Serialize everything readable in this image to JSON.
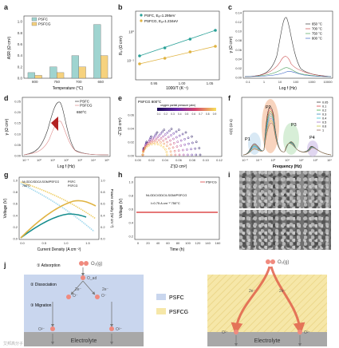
{
  "panels": {
    "a": {
      "label": "a",
      "legend": [
        "PSFC",
        "PSFCG"
      ],
      "xlabel": "Temperature (°C)",
      "ylabel": "ASR (Ω cm²)"
    },
    "b": {
      "label": "b",
      "legend": [
        "PSFC, Eₐ=1.295eV",
        "PSFCG, Eₐ=1.234eV"
      ],
      "xlabel": "1000/T (K⁻¹)",
      "ylabel": "Rₚ (Ω cm²)"
    },
    "c": {
      "label": "c",
      "legend": [
        "650 °C",
        "700 °C",
        "750 °C",
        "800 °C"
      ],
      "xlabel": "Log f (Hz)",
      "ylabel": "γ (Ω cm²)"
    },
    "d": {
      "label": "d",
      "legend": [
        "PSFC",
        "PSFCG"
      ],
      "annotation": "650°C",
      "xlabel": "Log f (Hz)",
      "ylabel": "γ (Ω cm²)"
    },
    "e": {
      "label": "e",
      "title": "PSFCG 800°C",
      "cbar_label": "oxygen partial pressure (atm)",
      "cbar_ticks": [
        "0.1",
        "0.2",
        "0.3",
        "0.4",
        "0.5",
        "0.6",
        "0.7",
        "0.8",
        "0.9"
      ],
      "xlabel": "Z'(Ω cm²)",
      "ylabel": "-Z''(Ω cm²)"
    },
    "f": {
      "label": "f",
      "legend": [
        "0.05",
        "0.1",
        "0.2",
        "0.3",
        "0.4",
        "0.5",
        "0.6",
        "1"
      ],
      "peaks": [
        "P1",
        "P2",
        "P3",
        "P4"
      ],
      "xlabel": "Frequency (Hz)",
      "ylabel": "G(τ) (Ω s)"
    },
    "g": {
      "label": "g",
      "cell": "Ni-GDC/GDC/LSGM/PSFCG",
      "temp": "750°C",
      "legend": [
        "PSFC",
        "PSFCG"
      ],
      "xlabel": "Current Density (A cm⁻²)",
      "ylabel": "Voltage (V)",
      "y2label": "Power Density (W cm⁻²)"
    },
    "h": {
      "label": "h",
      "legend": [
        "PSFCG"
      ],
      "cell": "Ni-GDC/GDC/LSGM/PSFCG",
      "condition": "I=0.75 A cm⁻²   750°C",
      "xlabel": "Time (h)",
      "ylabel": "Voltage (V)"
    },
    "i": {
      "label": "i"
    },
    "j": {
      "label": "j"
    }
  },
  "chart_data": [
    {
      "type": "bar",
      "title": "",
      "categories": [
        "800",
        "750",
        "700",
        "650"
      ],
      "series": [
        {
          "name": "PSFC",
          "values": [
            0.1,
            0.2,
            0.4,
            0.95
          ]
        },
        {
          "name": "PSFCG",
          "values": [
            0.05,
            0.1,
            0.2,
            0.4
          ]
        }
      ],
      "ylim": [
        0,
        1.1
      ],
      "yticks": [
        "0.0",
        "0.2",
        "0.4",
        "0.6",
        "0.8",
        "1.0"
      ]
    },
    {
      "type": "scatter",
      "title": "",
      "x": [
        0.93,
        0.97,
        1.01,
        1.05
      ],
      "series": [
        {
          "name": "PSFC, Eₐ=1.295eV",
          "values": [
            0.09,
            0.16,
            0.29,
            0.62
          ]
        },
        {
          "name": "PSFCG, Eₐ=1.234eV",
          "values": [
            0.04,
            0.08,
            0.14,
            0.28
          ]
        }
      ],
      "xticks": [
        "0.95",
        "1.00",
        "1.05"
      ],
      "yticks": [
        "10⁰",
        "10⁻¹"
      ]
    },
    {
      "type": "line",
      "title": "",
      "x_log": [
        -1,
        0,
        1,
        2,
        3,
        4
      ],
      "series": [
        {
          "name": "650 °C",
          "values": [
            0.0,
            0.03,
            0.13,
            0.05,
            0.01,
            0.0
          ]
        },
        {
          "name": "700 °C",
          "values": [
            0.0,
            0.02,
            0.05,
            0.03,
            0.01,
            0.0
          ]
        },
        {
          "name": "750 °C",
          "values": [
            0.0,
            0.01,
            0.03,
            0.02,
            0.005,
            0.0
          ]
        },
        {
          "name": "800 °C",
          "values": [
            0.0,
            0.01,
            0.02,
            0.01,
            0.005,
            0.0
          ]
        }
      ],
      "yticks": [
        "0.00",
        "0.02",
        "0.04",
        "0.06",
        "0.08",
        "0.10",
        "0.12",
        "0.14"
      ],
      "xticks": [
        "0.1",
        "1",
        "10",
        "100",
        "1000",
        "10000"
      ]
    },
    {
      "type": "line",
      "title": "",
      "series": [
        {
          "name": "PSFC",
          "values": [
            0.0,
            0.02,
            0.14,
            0.24,
            0.1,
            0.02,
            0.0
          ]
        },
        {
          "name": "PSFCG",
          "values": [
            0.0,
            0.01,
            0.08,
            0.15,
            0.07,
            0.01,
            0.0
          ]
        }
      ],
      "yticks": [
        "0.00",
        "0.05",
        "0.10",
        "0.15",
        "0.20",
        "0.25"
      ],
      "xticks": [
        "10⁻¹",
        "10⁰",
        "10¹",
        "10²",
        "10³",
        "10⁴",
        "10⁵"
      ]
    },
    {
      "type": "line",
      "title": "PSFCG 800°C",
      "xticks": [
        "0.00",
        "0.02",
        "0.04",
        "0.06",
        "0.08",
        "0.10",
        "0.12"
      ],
      "yticks": [
        "0.00",
        "0.02",
        "0.04",
        "0.06"
      ]
    },
    {
      "type": "line",
      "title": "",
      "xticks": [
        "10⁻²",
        "10⁻¹",
        "10⁰",
        "10¹",
        "10²",
        "10³",
        "10⁴"
      ]
    },
    {
      "type": "line",
      "title": "",
      "xticks": [
        "0.0",
        "0.5",
        "1.0",
        "1.5"
      ],
      "yticks": [
        "0.0",
        "0.2",
        "0.4",
        "0.6",
        "0.8",
        "1.0"
      ],
      "y2ticks": [
        "0.0",
        "0.2",
        "0.4",
        "0.6",
        "0.8",
        "1.0"
      ]
    },
    {
      "type": "line",
      "title": "",
      "xticks": [
        "0",
        "20",
        "40",
        "60",
        "80",
        "100",
        "120",
        "140",
        "160"
      ],
      "yticks": [
        "0.2",
        "0.4",
        "0.6",
        "0.8",
        "1.0"
      ],
      "series": [
        {
          "name": "PSFCG",
          "values": [
            0.72,
            0.72,
            0.72,
            0.72,
            0.72,
            0.72,
            0.72,
            0.72,
            0.72
          ]
        }
      ]
    }
  ],
  "schematic": {
    "o2_left": "O₂(g)",
    "o2_right": "O₂(g)",
    "steps": [
      "① Adsorption",
      "② Dissociation",
      "③ Migration"
    ],
    "species": {
      "oad": "O_ad",
      "o_minus": "O⁻",
      "o2_minus": "O²⁻"
    },
    "electron": "2e⁻",
    "electrolyte": "Electrolyte",
    "legend": [
      "PSFC",
      "PSFCG"
    ],
    "colors": {
      "psfc": "#c9d6ee",
      "psfcg": "#f6e7a8",
      "electrolyte": "#a8a8a8"
    }
  },
  "watermark": "艾邦高分子"
}
